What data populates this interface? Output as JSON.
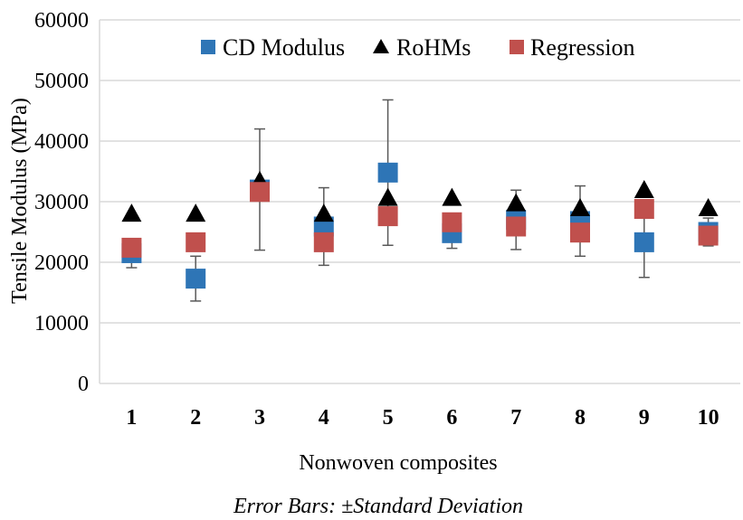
{
  "chart_data": {
    "type": "scatter",
    "categories": [
      "1",
      "2",
      "3",
      "4",
      "5",
      "6",
      "7",
      "8",
      "9",
      "10"
    ],
    "xlabel": "Nonwoven composites",
    "ylabel": "Tensile Modulus (MPa)",
    "ylim": [
      0,
      60000
    ],
    "yticks": [
      0,
      10000,
      20000,
      30000,
      40000,
      50000,
      60000
    ],
    "grid": true,
    "legend_position": "top",
    "note": "Error Bars: ±Standard Deviation",
    "series": [
      {
        "name": "CD Modulus",
        "marker": "square",
        "color": "#2E75B6",
        "values": [
          21500,
          17300,
          32000,
          25900,
          34800,
          24800,
          27000,
          26800,
          23300,
          25000
        ],
        "error": [
          2400,
          3700,
          10000,
          6400,
          12000,
          2500,
          4900,
          5800,
          5800,
          2300
        ]
      },
      {
        "name": "RoHMs",
        "marker": "triangle",
        "color": "#000000",
        "values": [
          27900,
          27900,
          33300,
          27900,
          30500,
          30500,
          29600,
          28800,
          31800,
          28800
        ]
      },
      {
        "name": "Regression",
        "marker": "square",
        "color": "#C0504D",
        "values": [
          22400,
          23300,
          31600,
          23300,
          27600,
          26600,
          25900,
          24900,
          28800,
          24400
        ]
      }
    ]
  }
}
